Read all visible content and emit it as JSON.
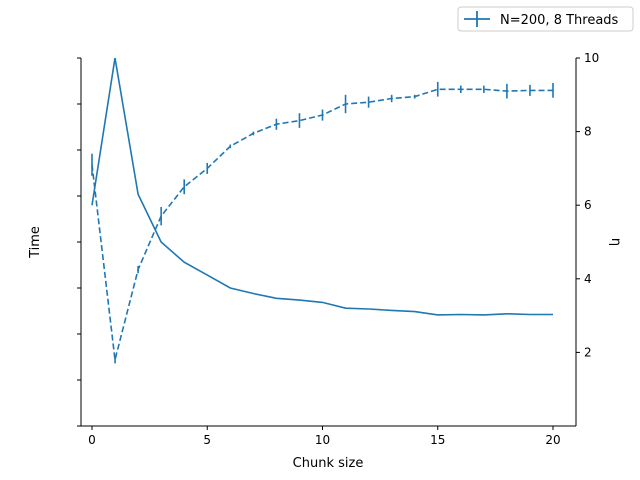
{
  "chart_data": {
    "type": "line",
    "xlabel": "Chunk size",
    "ylabel_left": "Time",
    "ylabel_right": "η",
    "xlim": [
      -0.5,
      21
    ],
    "x_ticks": [
      0,
      5,
      10,
      15,
      20
    ],
    "right_ylim": [
      0,
      10
    ],
    "right_y_ticks": [
      2,
      4,
      6,
      8,
      10
    ],
    "left_y_tick_count": 9,
    "left_y_tick_labels_visible": false,
    "legend": {
      "label": "N=200, 8 Threads",
      "placement": "top-right"
    },
    "color": "#1f77b4",
    "series": [
      {
        "name": "N=200, 8 Threads",
        "axis": "left",
        "style": "solid",
        "x": [
          0,
          1,
          2,
          3,
          4,
          5,
          6,
          7,
          8,
          9,
          10,
          11,
          12,
          13,
          14,
          15,
          16,
          17,
          18,
          19,
          20
        ],
        "y": [
          0.6,
          1.0,
          0.63,
          0.5,
          0.445,
          0.41,
          0.375,
          0.36,
          0.347,
          0.342,
          0.336,
          0.32,
          0.318,
          0.314,
          0.311,
          0.302,
          0.303,
          0.302,
          0.305,
          0.303,
          0.303
        ]
      },
      {
        "name": "",
        "axis": "right",
        "style": "dashed",
        "x": [
          0,
          1,
          2,
          3,
          4,
          5,
          6,
          7,
          8,
          9,
          10,
          11,
          12,
          13,
          14,
          15,
          16,
          17,
          18,
          19,
          20
        ],
        "y": [
          7.1,
          1.8,
          4.25,
          5.7,
          6.5,
          7.0,
          7.6,
          7.95,
          8.2,
          8.3,
          8.45,
          8.75,
          8.8,
          8.9,
          8.95,
          9.15,
          9.15,
          9.15,
          9.1,
          9.12,
          9.12
        ],
        "yerr": [
          0.3,
          0.1,
          0.1,
          0.25,
          0.2,
          0.15,
          0.05,
          0.05,
          0.15,
          0.2,
          0.15,
          0.25,
          0.15,
          0.1,
          0.05,
          0.2,
          0.1,
          0.1,
          0.2,
          0.15,
          0.2
        ]
      }
    ]
  }
}
